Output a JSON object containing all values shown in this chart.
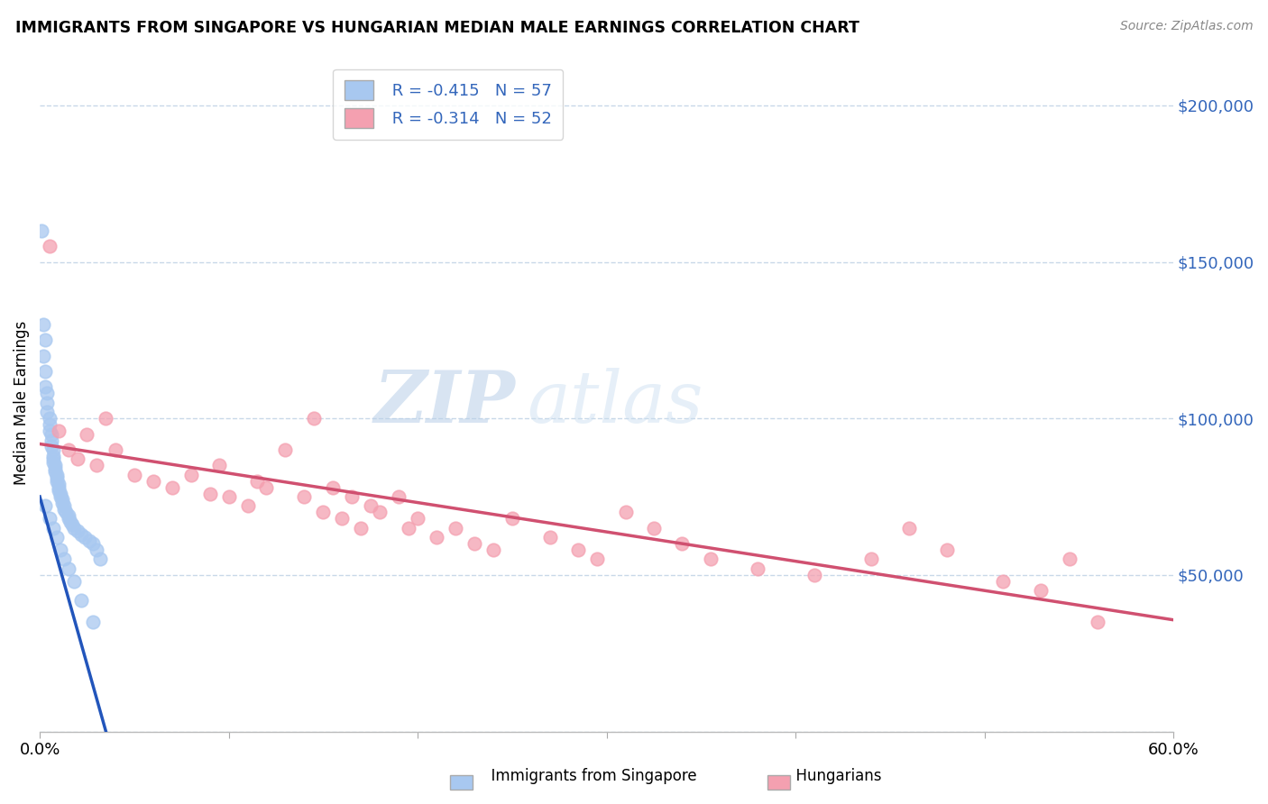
{
  "title": "IMMIGRANTS FROM SINGAPORE VS HUNGARIAN MEDIAN MALE EARNINGS CORRELATION CHART",
  "source": "Source: ZipAtlas.com",
  "ylabel": "Median Male Earnings",
  "xlim": [
    0.0,
    0.6
  ],
  "ylim": [
    0,
    210000
  ],
  "yticks": [
    0,
    50000,
    100000,
    150000,
    200000
  ],
  "ytick_labels": [
    "",
    "$50,000",
    "$100,000",
    "$150,000",
    "$200,000"
  ],
  "xticks": [
    0.0,
    0.1,
    0.2,
    0.3,
    0.4,
    0.5,
    0.6
  ],
  "xtick_labels": [
    "0.0%",
    "",
    "",
    "",
    "",
    "",
    "60.0%"
  ],
  "legend_r1": "R = -0.415   N = 57",
  "legend_r2": "R = -0.314   N = 52",
  "singapore_color": "#a8c8f0",
  "hungarian_color": "#f4a0b0",
  "singapore_line_color": "#2255bb",
  "hungarian_line_color": "#d05070",
  "watermark_zip": "ZIP",
  "watermark_atlas": "atlas",
  "background_color": "#ffffff",
  "grid_color": "#c8d8e8",
  "singapore_scatter_x": [
    0.001,
    0.002,
    0.002,
    0.003,
    0.003,
    0.003,
    0.004,
    0.004,
    0.004,
    0.005,
    0.005,
    0.005,
    0.006,
    0.006,
    0.006,
    0.007,
    0.007,
    0.007,
    0.007,
    0.008,
    0.008,
    0.008,
    0.009,
    0.009,
    0.009,
    0.01,
    0.01,
    0.01,
    0.011,
    0.011,
    0.012,
    0.012,
    0.013,
    0.013,
    0.014,
    0.015,
    0.015,
    0.016,
    0.017,
    0.018,
    0.02,
    0.022,
    0.024,
    0.026,
    0.028,
    0.03,
    0.032,
    0.003,
    0.005,
    0.007,
    0.009,
    0.011,
    0.013,
    0.015,
    0.018,
    0.022,
    0.028
  ],
  "singapore_scatter_y": [
    160000,
    130000,
    120000,
    125000,
    115000,
    110000,
    108000,
    105000,
    102000,
    100000,
    98000,
    96000,
    95000,
    93000,
    91000,
    90000,
    88000,
    87000,
    86000,
    85000,
    84000,
    83000,
    82000,
    81000,
    80000,
    79000,
    78000,
    77000,
    76000,
    75000,
    74000,
    73000,
    72000,
    71000,
    70000,
    69000,
    68000,
    67000,
    66000,
    65000,
    64000,
    63000,
    62000,
    61000,
    60000,
    58000,
    55000,
    72000,
    68000,
    65000,
    62000,
    58000,
    55000,
    52000,
    48000,
    42000,
    35000
  ],
  "hungarian_scatter_x": [
    0.005,
    0.01,
    0.015,
    0.02,
    0.025,
    0.03,
    0.035,
    0.04,
    0.05,
    0.06,
    0.07,
    0.08,
    0.09,
    0.095,
    0.1,
    0.11,
    0.115,
    0.12,
    0.13,
    0.14,
    0.145,
    0.15,
    0.155,
    0.16,
    0.165,
    0.17,
    0.175,
    0.18,
    0.19,
    0.195,
    0.2,
    0.21,
    0.22,
    0.23,
    0.24,
    0.25,
    0.27,
    0.285,
    0.295,
    0.31,
    0.325,
    0.34,
    0.355,
    0.38,
    0.41,
    0.44,
    0.46,
    0.48,
    0.51,
    0.53,
    0.545,
    0.56
  ],
  "hungarian_scatter_y": [
    155000,
    96000,
    90000,
    87000,
    95000,
    85000,
    100000,
    90000,
    82000,
    80000,
    78000,
    82000,
    76000,
    85000,
    75000,
    72000,
    80000,
    78000,
    90000,
    75000,
    100000,
    70000,
    78000,
    68000,
    75000,
    65000,
    72000,
    70000,
    75000,
    65000,
    68000,
    62000,
    65000,
    60000,
    58000,
    68000,
    62000,
    58000,
    55000,
    70000,
    65000,
    60000,
    55000,
    52000,
    50000,
    55000,
    65000,
    58000,
    48000,
    45000,
    55000,
    35000
  ]
}
